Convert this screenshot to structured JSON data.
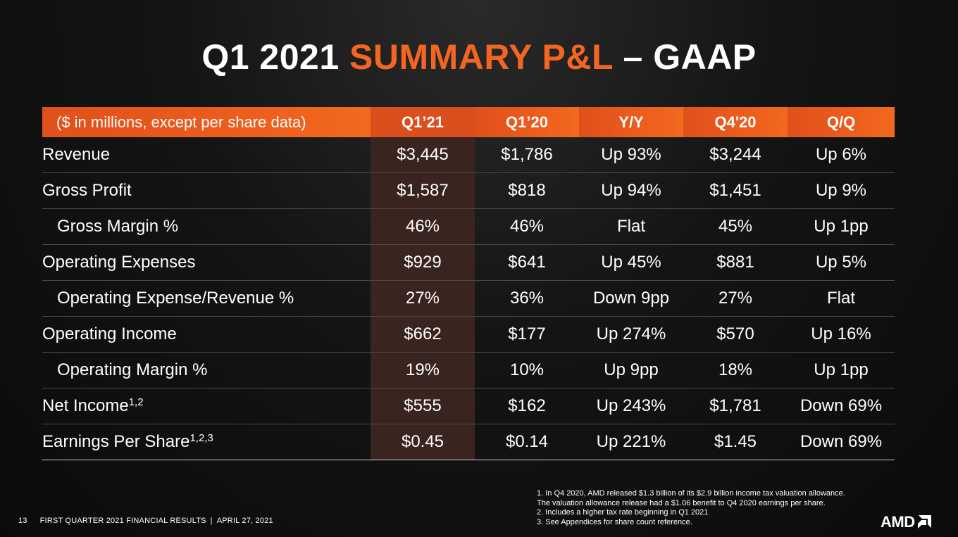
{
  "title": {
    "part1": "Q1 2021 ",
    "accent": "SUMMARY P&L",
    "part2": " – GAAP"
  },
  "table": {
    "header": [
      "($ in millions, except per share data)",
      "Q1’21",
      "Q1’20",
      "Y/Y",
      "Q4'20",
      "Q/Q"
    ],
    "rows": [
      {
        "label": "Revenue",
        "sup": "",
        "indent": false,
        "q121": "$3,445",
        "q120": "$1,786",
        "yy": "Up 93%",
        "q420": "$3,244",
        "qq": "Up 6%"
      },
      {
        "label": "Gross Profit",
        "sup": "",
        "indent": false,
        "q121": "$1,587",
        "q120": "$818",
        "yy": "Up 94%",
        "q420": "$1,451",
        "qq": "Up 9%"
      },
      {
        "label": "Gross Margin %",
        "sup": "",
        "indent": true,
        "q121": "46%",
        "q120": "46%",
        "yy": "Flat",
        "q420": "45%",
        "qq": "Up 1pp"
      },
      {
        "label": "Operating Expenses",
        "sup": "",
        "indent": false,
        "q121": "$929",
        "q120": "$641",
        "yy": "Up 45%",
        "q420": "$881",
        "qq": "Up 5%"
      },
      {
        "label": "Operating Expense/Revenue %",
        "sup": "",
        "indent": true,
        "q121": "27%",
        "q120": "36%",
        "yy": "Down 9pp",
        "q420": "27%",
        "qq": "Flat"
      },
      {
        "label": "Operating Income",
        "sup": "",
        "indent": false,
        "q121": "$662",
        "q120": "$177",
        "yy": "Up 274%",
        "q420": "$570",
        "qq": "Up 16%"
      },
      {
        "label": "Operating Margin %",
        "sup": "",
        "indent": true,
        "q121": "19%",
        "q120": "10%",
        "yy": "Up 9pp",
        "q420": "18%",
        "qq": "Up 1pp"
      },
      {
        "label": "Net Income",
        "sup": "1,2",
        "indent": false,
        "q121": "$555",
        "q120": "$162",
        "yy": "Up 243%",
        "q420": "$1,781",
        "qq": "Down 69%"
      },
      {
        "label": "Earnings Per Share",
        "sup": "1,2,3",
        "indent": false,
        "q121": "$0.45",
        "q120": "$0.14",
        "yy": "Up 221%",
        "q420": "$1.45",
        "qq": "Down 69%"
      }
    ]
  },
  "footnotes": [
    "1. In Q4 2020, AMD released $1.3 billion of its $2.9 billion income tax valuation allowance.",
    "The valuation allowance release had a $1.06 benefit to Q4 2020 earnings per share.",
    "2. Includes a higher tax rate beginning in Q1 2021",
    "3. See Appendices for share count reference."
  ],
  "footer": {
    "page_number": "13",
    "presentation": "FIRST QUARTER 2021 FINANCIAL RESULTS",
    "separator": "|",
    "date": "APRIL 27, 2021"
  },
  "logo": {
    "text": "AMD",
    "icon": "amd-arrow-icon"
  },
  "colors": {
    "accent": "#f26522",
    "highlight_column": "#3a2420",
    "background": "#141414"
  }
}
